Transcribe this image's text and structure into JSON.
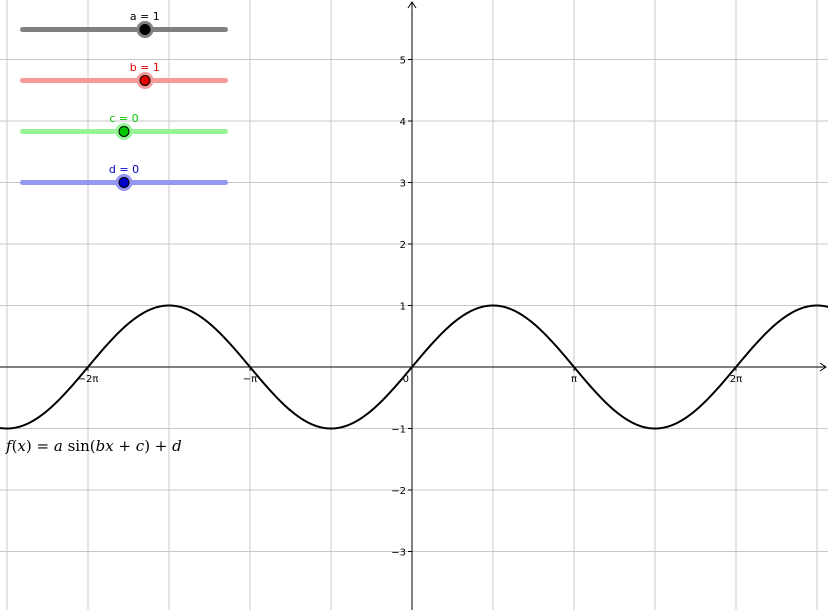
{
  "sliders": [
    {
      "name": "a",
      "label": "a = 1",
      "value": 1,
      "min": -5,
      "max": 5,
      "color": "#000000",
      "track_color": "#808080"
    },
    {
      "name": "b",
      "label": "b = 1",
      "value": 1,
      "min": -5,
      "max": 5,
      "color": "#e00000",
      "track_color": "#f59a9a"
    },
    {
      "name": "c",
      "label": "c = 0",
      "value": 0,
      "min": -5,
      "max": 5,
      "color": "#00c800",
      "track_color": "#96f596"
    },
    {
      "name": "d",
      "label": "d = 0",
      "value": 0,
      "min": -5,
      "max": 5,
      "color": "#0000c8",
      "track_color": "#9696f5"
    }
  ],
  "formula": {
    "f": "f",
    "open": "(",
    "x": "x",
    "close": ") = ",
    "a": "a",
    "sin": " sin(",
    "b": "b",
    "xx": "x",
    "plus": " + ",
    "c": "c",
    "close2": ") + ",
    "d": "d"
  },
  "chart_data": {
    "type": "line",
    "function": "f(x) = a sin(bx + c) + d",
    "x_range_units_of_pi": [
      -2.55,
      2.55
    ],
    "y_range": [
      -3.9,
      5.9
    ],
    "grid": true,
    "x_ticks": [
      "−2π",
      "−π",
      "0",
      "π",
      "2π"
    ],
    "y_ticks": [
      "5",
      "4",
      "3",
      "2",
      "1",
      "−1",
      "−2",
      "−3"
    ],
    "series": [
      {
        "color": "#000000"
      }
    ]
  }
}
